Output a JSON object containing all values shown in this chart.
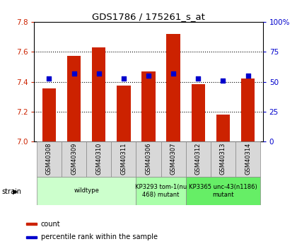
{
  "title": "GDS1786 / 175261_s_at",
  "samples": [
    "GSM40308",
    "GSM40309",
    "GSM40310",
    "GSM40311",
    "GSM40306",
    "GSM40307",
    "GSM40312",
    "GSM40313",
    "GSM40314"
  ],
  "count_values": [
    7.355,
    7.575,
    7.63,
    7.375,
    7.47,
    7.72,
    7.385,
    7.18,
    7.42
  ],
  "percentile_values": [
    53,
    57,
    57,
    53,
    55,
    57,
    53,
    51,
    55
  ],
  "ylim_left": [
    7.0,
    7.8
  ],
  "ylim_right": [
    0,
    100
  ],
  "yticks_left": [
    7.0,
    7.2,
    7.4,
    7.6,
    7.8
  ],
  "yticks_right": [
    0,
    25,
    50,
    75,
    100
  ],
  "bar_color": "#cc2200",
  "dot_color": "#0000cc",
  "bar_bottom": 7.0,
  "grid_lines": [
    7.2,
    7.4,
    7.6
  ],
  "strain_groups": [
    {
      "label": "wildtype",
      "start": 0,
      "end": 4,
      "color": "#ccffcc"
    },
    {
      "label": "KP3293 tom-1(nu\n468) mutant",
      "start": 4,
      "end": 6,
      "color": "#aaffaa"
    },
    {
      "label": "KP3365 unc-43(n1186)\nmutant",
      "start": 6,
      "end": 9,
      "color": "#66ee66"
    }
  ],
  "legend_items": [
    {
      "label": "count",
      "color": "#cc2200"
    },
    {
      "label": "percentile rank within the sample",
      "color": "#0000cc"
    }
  ],
  "left_label_color": "#cc2200",
  "right_label_color": "#0000cc"
}
